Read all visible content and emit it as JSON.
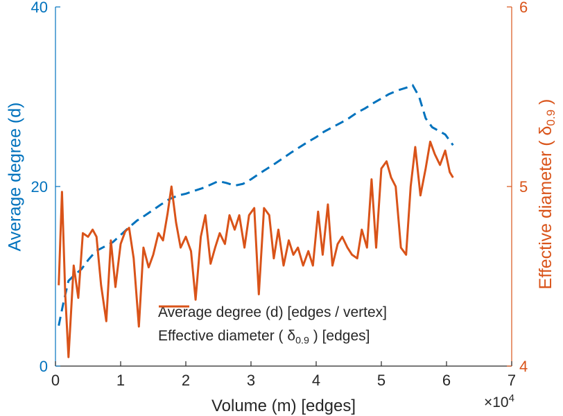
{
  "figure": {
    "background": "#ffffff",
    "axis_text_color": "#262626"
  },
  "axes": {
    "x": {
      "label": "Volume (m) [edges]"
    },
    "left": {
      "label": "Average degree (d)"
    },
    "right": {
      "label_prefix": "Effective diameter (  ",
      "delta": "δ",
      "delta_sub": "0.9",
      "label_suffix": " )"
    }
  },
  "legend": {
    "average_degree": {
      "label": "Average degree (d) [edges / vertex]",
      "color": "#0072BD",
      "style": "dashed"
    },
    "effective_diameter": {
      "prefix": "Effective diameter (  ",
      "delta": "δ",
      "delta_sub": "0.9",
      "suffix": " ) [edges]",
      "color": "#D95319",
      "style": "solid"
    }
  },
  "chart_data": {
    "type": "line",
    "title": "",
    "xlabel": "Volume (m) [edges]",
    "x_scale": {
      "base": "×10",
      "exp": "4"
    },
    "xlim": [
      0,
      7
    ],
    "x_ticks": [
      0,
      1,
      2,
      3,
      4,
      5,
      6,
      7
    ],
    "grid": false,
    "legend_location": "inside lower center",
    "left_axis": {
      "ylabel": "Average degree (d)",
      "ylim": [
        0,
        40
      ],
      "yticks": [
        0,
        20,
        40
      ],
      "color": "#0072BD"
    },
    "right_axis": {
      "ylabel": "Effective diameter ( δ_0.9 )",
      "ylim": [
        4,
        6
      ],
      "yticks": [
        4,
        5,
        6
      ],
      "color": "#D95319"
    },
    "series": [
      {
        "name": "Average degree (d) [edges / vertex]",
        "axis": "left",
        "color": "#0072BD",
        "style": "dashed",
        "x": [
          0.05,
          0.12,
          0.2,
          0.3,
          0.4,
          0.5,
          0.62,
          0.75,
          0.88,
          1.0,
          1.12,
          1.25,
          1.38,
          1.5,
          1.62,
          1.75,
          1.88,
          2.0,
          2.12,
          2.25,
          2.38,
          2.5,
          2.62,
          2.75,
          2.88,
          3.0,
          3.12,
          3.25,
          3.38,
          3.5,
          3.62,
          3.75,
          3.88,
          4.0,
          4.12,
          4.25,
          4.38,
          4.5,
          4.62,
          4.75,
          4.88,
          5.0,
          5.12,
          5.25,
          5.38,
          5.48,
          5.58,
          5.68,
          5.78,
          5.88,
          5.98,
          6.1
        ],
        "y": [
          4.5,
          7.0,
          9.5,
          10.2,
          10.8,
          11.8,
          12.8,
          13.3,
          13.8,
          14.6,
          15.4,
          16.2,
          16.8,
          17.4,
          18.0,
          18.6,
          19.0,
          19.2,
          19.5,
          19.8,
          20.2,
          20.6,
          20.4,
          20.1,
          20.3,
          20.8,
          21.4,
          22.0,
          22.6,
          23.2,
          23.8,
          24.4,
          25.0,
          25.5,
          26.1,
          26.6,
          27.1,
          27.6,
          28.2,
          28.7,
          29.3,
          29.8,
          30.3,
          30.7,
          31.0,
          31.3,
          30.0,
          27.6,
          26.6,
          26.2,
          25.8,
          24.6
        ]
      },
      {
        "name": "Effective diameter ( δ_0.9 ) [edges]",
        "axis": "right",
        "color": "#D95319",
        "style": "solid",
        "x": [
          0.05,
          0.1,
          0.15,
          0.2,
          0.28,
          0.35,
          0.42,
          0.5,
          0.57,
          0.63,
          0.7,
          0.78,
          0.85,
          0.92,
          1.0,
          1.07,
          1.13,
          1.2,
          1.28,
          1.35,
          1.43,
          1.5,
          1.58,
          1.65,
          1.72,
          1.78,
          1.85,
          1.92,
          2.0,
          2.08,
          2.15,
          2.23,
          2.3,
          2.38,
          2.45,
          2.52,
          2.6,
          2.67,
          2.75,
          2.82,
          2.9,
          2.97,
          3.05,
          3.12,
          3.2,
          3.28,
          3.35,
          3.42,
          3.5,
          3.58,
          3.65,
          3.72,
          3.8,
          3.88,
          3.95,
          4.03,
          4.1,
          4.18,
          4.25,
          4.33,
          4.4,
          4.48,
          4.55,
          4.63,
          4.7,
          4.78,
          4.85,
          4.92,
          5.0,
          5.08,
          5.15,
          5.22,
          5.3,
          5.38,
          5.45,
          5.52,
          5.6,
          5.68,
          5.75,
          5.82,
          5.9,
          5.98,
          6.05,
          6.1
        ],
        "y": [
          4.45,
          4.97,
          4.4,
          4.05,
          4.56,
          4.38,
          4.74,
          4.72,
          4.76,
          4.72,
          4.45,
          4.25,
          4.7,
          4.44,
          4.68,
          4.75,
          4.77,
          4.6,
          4.22,
          4.66,
          4.55,
          4.62,
          4.74,
          4.7,
          4.85,
          5.0,
          4.8,
          4.66,
          4.72,
          4.64,
          4.37,
          4.72,
          4.84,
          4.57,
          4.66,
          4.74,
          4.68,
          4.84,
          4.76,
          4.84,
          4.66,
          4.84,
          4.88,
          4.4,
          4.88,
          4.84,
          4.6,
          4.76,
          4.56,
          4.7,
          4.62,
          4.66,
          4.56,
          4.64,
          4.56,
          4.86,
          4.62,
          4.9,
          4.56,
          4.68,
          4.72,
          4.66,
          4.62,
          4.6,
          4.76,
          4.66,
          5.04,
          4.66,
          5.1,
          5.14,
          5.05,
          5.0,
          4.66,
          4.62,
          5.0,
          5.22,
          4.95,
          5.1,
          5.25,
          5.18,
          5.12,
          5.2,
          5.08,
          5.05
        ]
      }
    ]
  }
}
